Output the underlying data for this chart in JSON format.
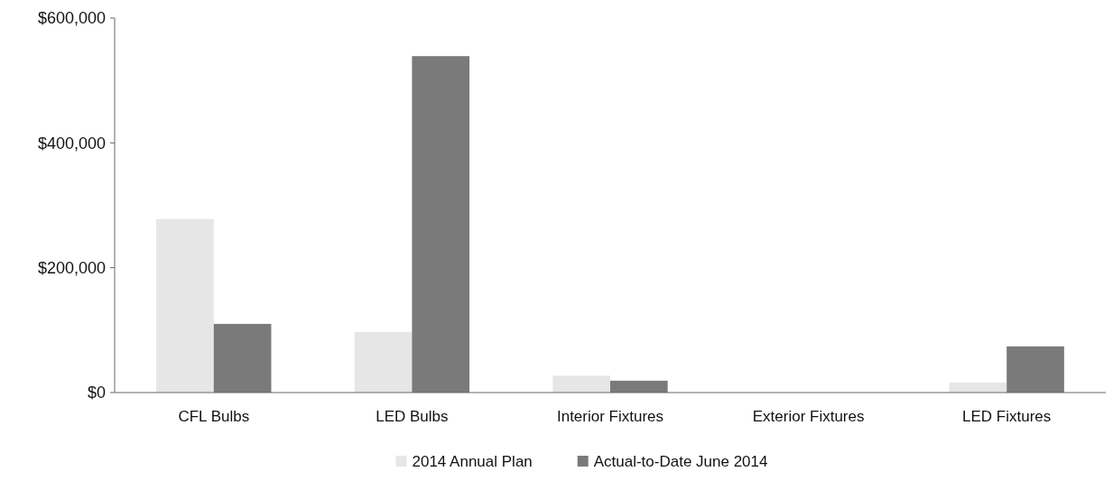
{
  "chart_data": {
    "type": "bar",
    "categories": [
      "CFL Bulbs",
      "LED Bulbs",
      "Interior Fixtures",
      "Exterior Fixtures",
      "LED Fixtures"
    ],
    "series": [
      {
        "name": "2014 Annual Plan",
        "color": "#e6e6e6",
        "values": [
          278000,
          97000,
          27000,
          0,
          16000
        ]
      },
      {
        "name": "Actual-to-Date June 2014",
        "color": "#7a7a7a",
        "values": [
          110000,
          539000,
          19000,
          0,
          74000
        ]
      }
    ],
    "ylim": [
      0,
      600000
    ],
    "yticks": [
      {
        "value": 0,
        "label": "$0"
      },
      {
        "value": 200000,
        "label": "$200,000"
      },
      {
        "value": 400000,
        "label": "$400,000"
      },
      {
        "value": 600000,
        "label": "$600,000"
      }
    ],
    "grid": false,
    "legend": "bottom"
  }
}
